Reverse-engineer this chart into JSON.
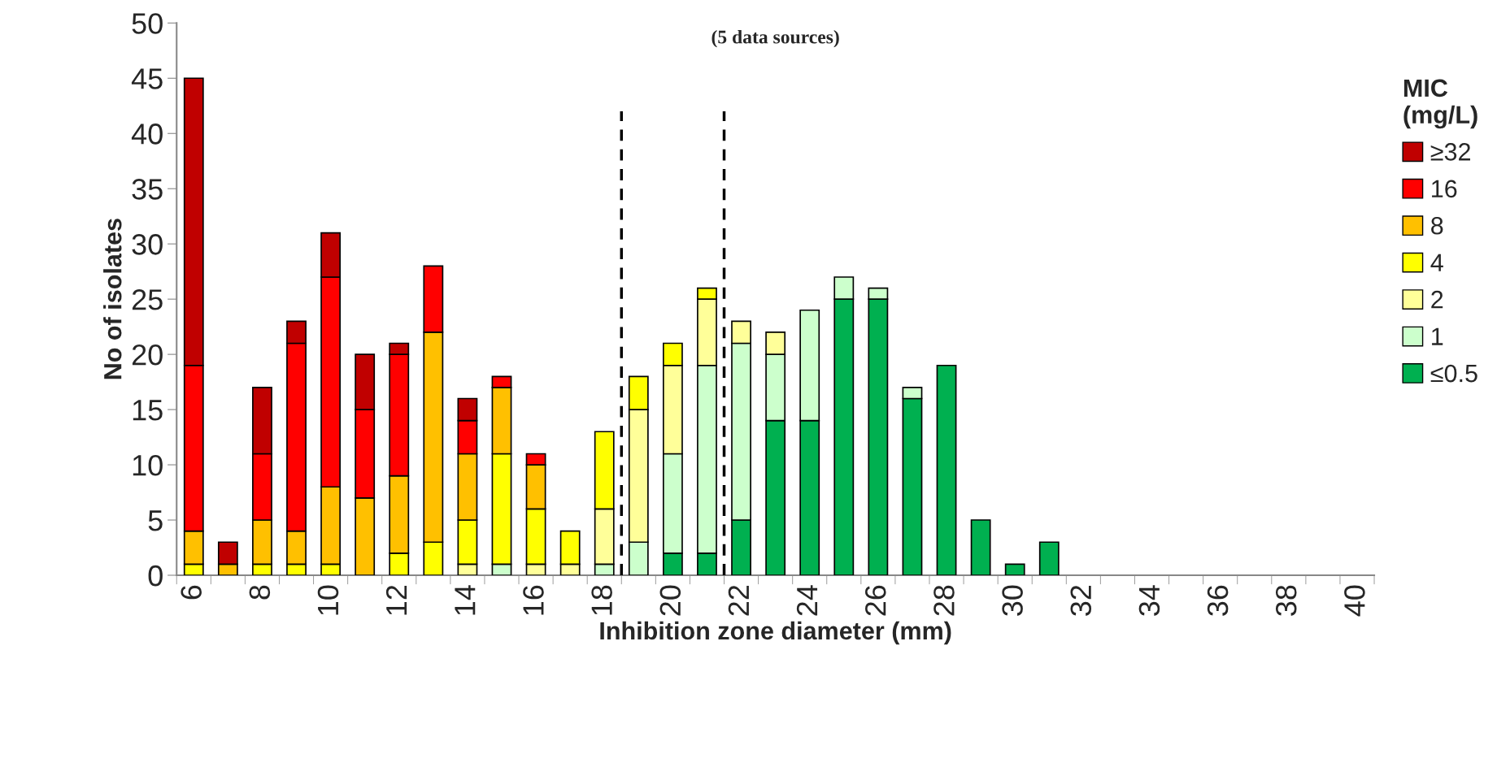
{
  "chart_data": {
    "type": "bar",
    "stacked": true,
    "title": "(5 data sources)",
    "xlabel": "Inhibition zone diameter (mm)",
    "ylabel": "No of isolates",
    "legend_title": "MIC\n(mg/L)",
    "legend": "right",
    "grid": false,
    "x": [
      6,
      7,
      8,
      9,
      10,
      11,
      12,
      13,
      14,
      15,
      16,
      17,
      18,
      19,
      20,
      21,
      22,
      23,
      24,
      25,
      26,
      27,
      28,
      29,
      30,
      31
    ],
    "xlim": [
      5.5,
      40.5
    ],
    "xticks": [
      6,
      8,
      10,
      12,
      14,
      16,
      18,
      20,
      22,
      24,
      26,
      28,
      30,
      32,
      34,
      36,
      38,
      40
    ],
    "ylim": [
      0,
      50
    ],
    "yticks": [
      0,
      5,
      10,
      15,
      20,
      25,
      30,
      35,
      40,
      45,
      50
    ],
    "series": [
      {
        "name": "≤0.5",
        "color": "#00b050",
        "values": [
          null,
          null,
          null,
          null,
          null,
          null,
          null,
          null,
          null,
          null,
          null,
          null,
          null,
          null,
          2,
          2,
          5,
          14,
          14,
          25,
          25,
          16,
          19,
          5,
          1,
          3
        ]
      },
      {
        "name": "1",
        "color": "#ccffcc",
        "values": [
          null,
          null,
          null,
          null,
          null,
          null,
          null,
          null,
          null,
          1,
          null,
          null,
          1,
          3,
          9,
          17,
          16,
          6,
          10,
          2,
          1,
          1,
          null,
          null,
          null,
          null
        ]
      },
      {
        "name": "2",
        "color": "#ffff99",
        "values": [
          null,
          null,
          null,
          null,
          null,
          null,
          null,
          null,
          1,
          null,
          1,
          1,
          5,
          12,
          8,
          6,
          2,
          2,
          null,
          null,
          null,
          null,
          null,
          null,
          null,
          null
        ]
      },
      {
        "name": "4",
        "color": "#ffff00",
        "values": [
          1,
          null,
          1,
          1,
          1,
          null,
          2,
          3,
          4,
          10,
          5,
          3,
          7,
          3,
          2,
          1,
          null,
          null,
          null,
          null,
          null,
          null,
          null,
          null,
          null,
          null
        ]
      },
      {
        "name": "8",
        "color": "#ffc000",
        "values": [
          3,
          1,
          4,
          3,
          7,
          7,
          7,
          19,
          6,
          6,
          4,
          null,
          null,
          null,
          null,
          null,
          null,
          null,
          null,
          null,
          null,
          null,
          null,
          null,
          null,
          null
        ]
      },
      {
        "name": "16",
        "color": "#ff0000",
        "values": [
          15,
          null,
          6,
          17,
          19,
          8,
          11,
          6,
          3,
          1,
          1,
          null,
          null,
          null,
          null,
          null,
          null,
          null,
          null,
          null,
          null,
          null,
          null,
          null,
          null,
          null
        ]
      },
      {
        "name": "≥32",
        "color": "#c00000",
        "values": [
          26,
          2,
          6,
          2,
          4,
          5,
          1,
          null,
          2,
          null,
          null,
          null,
          null,
          null,
          null,
          null,
          null,
          null,
          null,
          null,
          null,
          null,
          null,
          null,
          null,
          null
        ]
      }
    ],
    "ref_lines": [
      {
        "axis": "x",
        "value": 18.5,
        "color": "#000000",
        "line_style": "dashed"
      },
      {
        "axis": "x",
        "value": 21.5,
        "color": "#000000",
        "line_style": "dashed"
      }
    ]
  }
}
